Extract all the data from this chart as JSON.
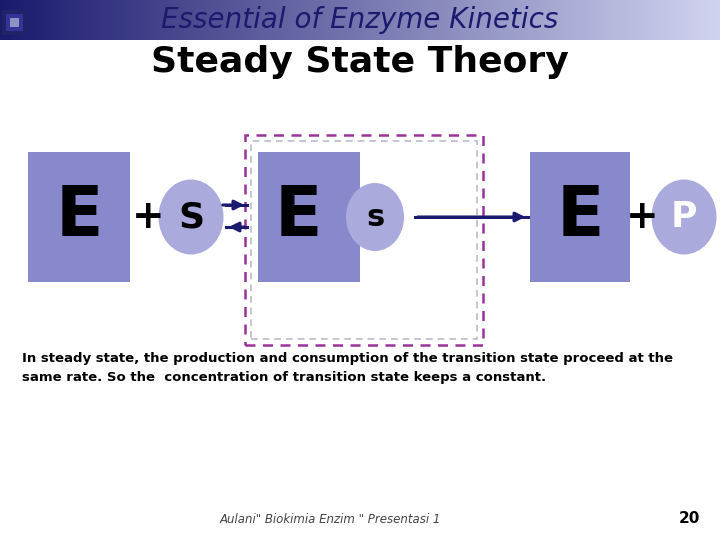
{
  "title1": "Essential of Enzyme Kinetics",
  "title2": "Steady State Theory",
  "body_text": "In steady state, the production and consumption of the transition state proceed at the\nsame rate. So the  concentration of transition state keeps a constant.",
  "footer_text": "Aulani\" Biokimia Enzim \" Presentasi 1",
  "page_num": "20",
  "bg_color": "#ffffff",
  "box_color": "#8888cc",
  "oval_color": "#aaaadd",
  "dashed_box_color": "#993399",
  "arrow_color": "#1a1a6e",
  "title1_color": "#1a1a6e",
  "title2_color": "#000000",
  "text_color": "#000000",
  "header_gradient_left": "#1a1a6e",
  "header_gradient_right": "#e0e4f0"
}
